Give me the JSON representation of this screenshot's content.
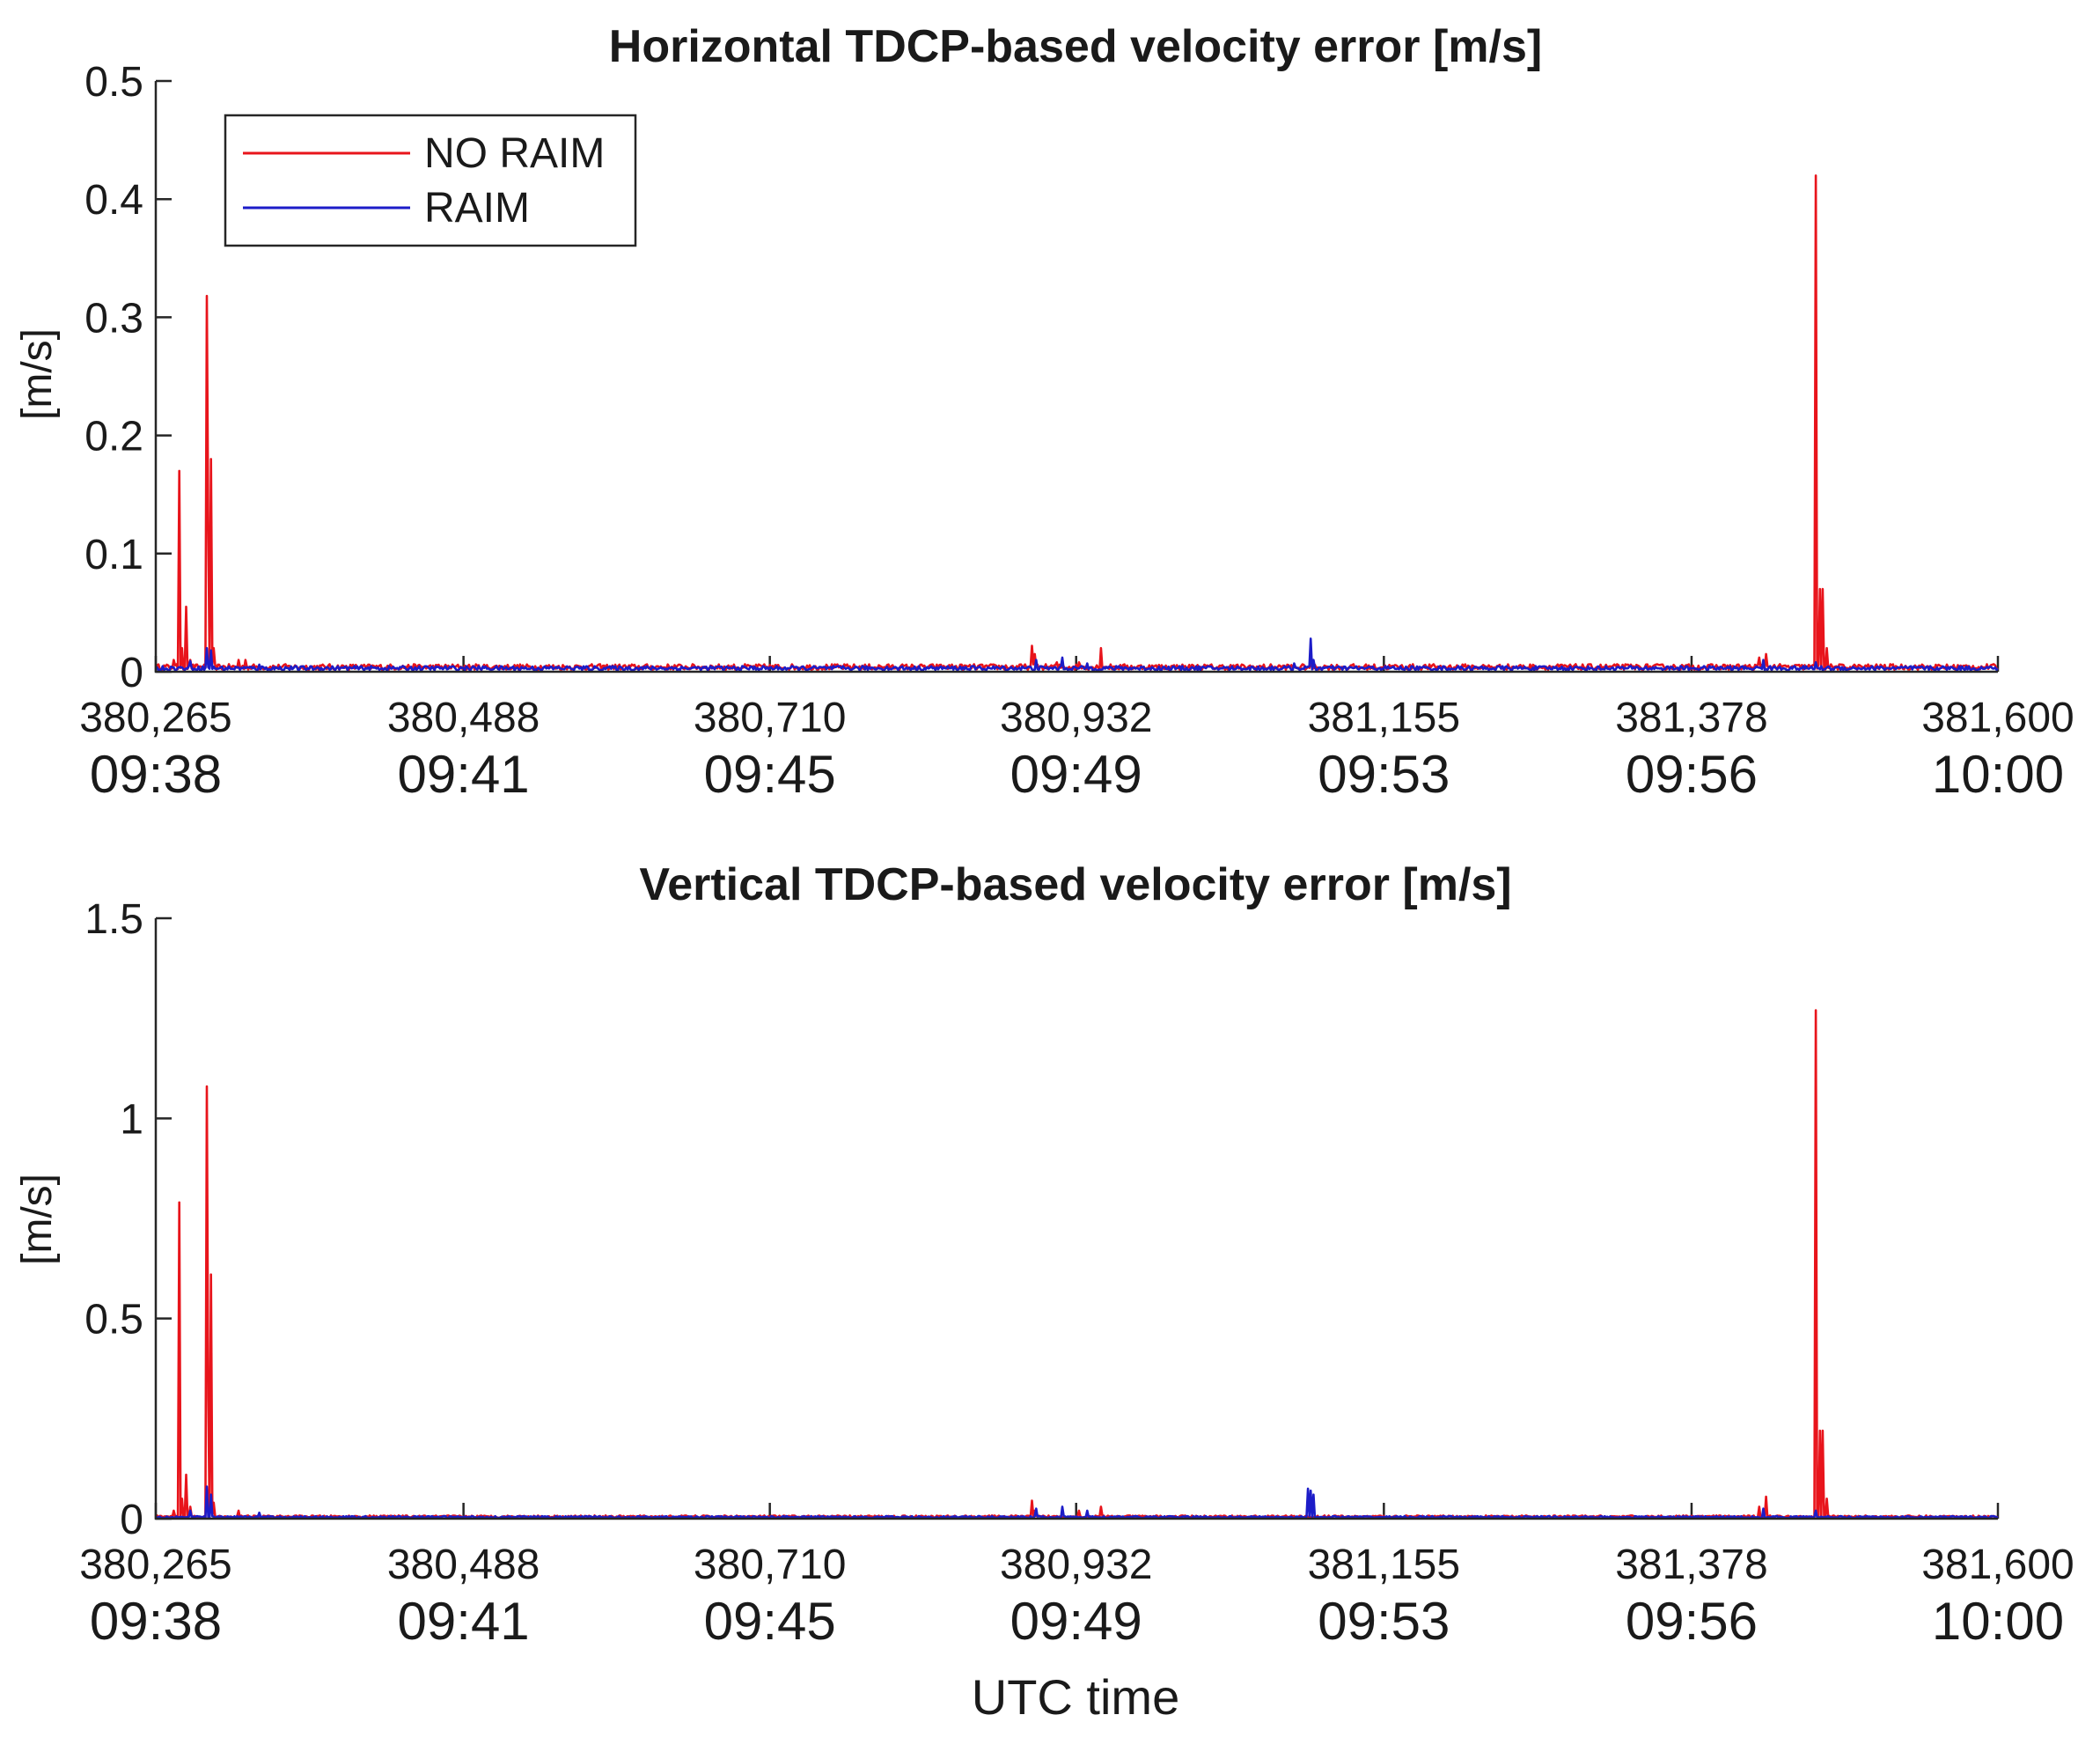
{
  "chart_data": [
    {
      "type": "line",
      "title": "Horizontal TDCP-based velocity error [m/s]",
      "ylabel": "[m/s]",
      "xlabel": "",
      "xlim": [
        380265,
        381600
      ],
      "ylim": [
        0,
        0.5
      ],
      "yticks": [
        "0",
        "0.1",
        "0.2",
        "0.3",
        "0.4",
        "0.5"
      ],
      "xticks": [
        {
          "value": 380265,
          "label": "380,265",
          "time": "09:38"
        },
        {
          "value": 380488,
          "label": "380,488",
          "time": "09:41"
        },
        {
          "value": 380710,
          "label": "380,710",
          "time": "09:45"
        },
        {
          "value": 380932,
          "label": "380,932",
          "time": "09:49"
        },
        {
          "value": 381155,
          "label": "381,155",
          "time": "09:53"
        },
        {
          "value": 381378,
          "label": "381,378",
          "time": "09:56"
        },
        {
          "value": 381600,
          "label": "381,600",
          "time": "10:00"
        }
      ],
      "legend": {
        "position": "top-left",
        "entries": [
          "NO RAIM",
          "RAIM"
        ]
      },
      "series": [
        {
          "name": "NO RAIM",
          "color": "#e8141b",
          "baseline": 0.004,
          "spikes": [
            {
              "x": 380278,
              "y": 0.01
            },
            {
              "x": 380282,
              "y": 0.17
            },
            {
              "x": 380284,
              "y": 0.02
            },
            {
              "x": 380287,
              "y": 0.055
            },
            {
              "x": 380290,
              "y": 0.01
            },
            {
              "x": 380302,
              "y": 0.318
            },
            {
              "x": 380303,
              "y": 0.12
            },
            {
              "x": 380305,
              "y": 0.18
            },
            {
              "x": 380307,
              "y": 0.02
            },
            {
              "x": 380325,
              "y": 0.01
            },
            {
              "x": 380330,
              "y": 0.01
            },
            {
              "x": 380900,
              "y": 0.022
            },
            {
              "x": 380902,
              "y": 0.015
            },
            {
              "x": 380918,
              "y": 0.008
            },
            {
              "x": 380934,
              "y": 0.008
            },
            {
              "x": 380950,
              "y": 0.02
            },
            {
              "x": 381427,
              "y": 0.012
            },
            {
              "x": 381432,
              "y": 0.015
            },
            {
              "x": 381468,
              "y": 0.42
            },
            {
              "x": 381471,
              "y": 0.07
            },
            {
              "x": 381473,
              "y": 0.07
            },
            {
              "x": 381476,
              "y": 0.02
            }
          ]
        },
        {
          "name": "RAIM",
          "color": "#1c1cc8",
          "baseline": 0.003,
          "spikes": [
            {
              "x": 380290,
              "y": 0.009
            },
            {
              "x": 380302,
              "y": 0.02
            },
            {
              "x": 380305,
              "y": 0.018
            },
            {
              "x": 380340,
              "y": 0.006
            },
            {
              "x": 380903,
              "y": 0.01
            },
            {
              "x": 380922,
              "y": 0.012
            },
            {
              "x": 380940,
              "y": 0.007
            },
            {
              "x": 381090,
              "y": 0.007
            },
            {
              "x": 381102,
              "y": 0.028
            },
            {
              "x": 381104,
              "y": 0.01
            },
            {
              "x": 381430,
              "y": 0.01
            },
            {
              "x": 381468,
              "y": 0.008
            }
          ]
        }
      ]
    },
    {
      "type": "line",
      "title": "Vertical TDCP-based velocity error [m/s]",
      "ylabel": "[m/s]",
      "xlabel": "UTC time",
      "xlim": [
        380265,
        381600
      ],
      "ylim": [
        0,
        1.5
      ],
      "yticks": [
        "0",
        "0.5",
        "1",
        "1.5"
      ],
      "xticks": [
        {
          "value": 380265,
          "label": "380,265",
          "time": "09:38"
        },
        {
          "value": 380488,
          "label": "380,488",
          "time": "09:41"
        },
        {
          "value": 380710,
          "label": "380,710",
          "time": "09:45"
        },
        {
          "value": 380932,
          "label": "380,932",
          "time": "09:49"
        },
        {
          "value": 381155,
          "label": "381,155",
          "time": "09:53"
        },
        {
          "value": 381378,
          "label": "381,378",
          "time": "09:56"
        },
        {
          "value": 381600,
          "label": "381,600",
          "time": "10:00"
        }
      ],
      "series": [
        {
          "name": "NO RAIM",
          "color": "#e8141b",
          "baseline": 0.005,
          "spikes": [
            {
              "x": 380278,
              "y": 0.02
            },
            {
              "x": 380282,
              "y": 0.79
            },
            {
              "x": 380284,
              "y": 0.05
            },
            {
              "x": 380287,
              "y": 0.11
            },
            {
              "x": 380290,
              "y": 0.03
            },
            {
              "x": 380302,
              "y": 1.08
            },
            {
              "x": 380303,
              "y": 0.3
            },
            {
              "x": 380305,
              "y": 0.61
            },
            {
              "x": 380307,
              "y": 0.04
            },
            {
              "x": 380325,
              "y": 0.02
            },
            {
              "x": 380900,
              "y": 0.045
            },
            {
              "x": 380902,
              "y": 0.02
            },
            {
              "x": 380934,
              "y": 0.02
            },
            {
              "x": 380950,
              "y": 0.03
            },
            {
              "x": 381427,
              "y": 0.03
            },
            {
              "x": 381432,
              "y": 0.055
            },
            {
              "x": 381468,
              "y": 1.27
            },
            {
              "x": 381471,
              "y": 0.22
            },
            {
              "x": 381473,
              "y": 0.22
            },
            {
              "x": 381476,
              "y": 0.05
            }
          ]
        },
        {
          "name": "RAIM",
          "color": "#1c1cc8",
          "baseline": 0.004,
          "spikes": [
            {
              "x": 380290,
              "y": 0.02
            },
            {
              "x": 380302,
              "y": 0.08
            },
            {
              "x": 380305,
              "y": 0.06
            },
            {
              "x": 380340,
              "y": 0.015
            },
            {
              "x": 380903,
              "y": 0.025
            },
            {
              "x": 380922,
              "y": 0.03
            },
            {
              "x": 380940,
              "y": 0.02
            },
            {
              "x": 381100,
              "y": 0.075
            },
            {
              "x": 381102,
              "y": 0.07
            },
            {
              "x": 381104,
              "y": 0.06
            },
            {
              "x": 381430,
              "y": 0.025
            },
            {
              "x": 381468,
              "y": 0.02
            }
          ]
        }
      ]
    }
  ]
}
